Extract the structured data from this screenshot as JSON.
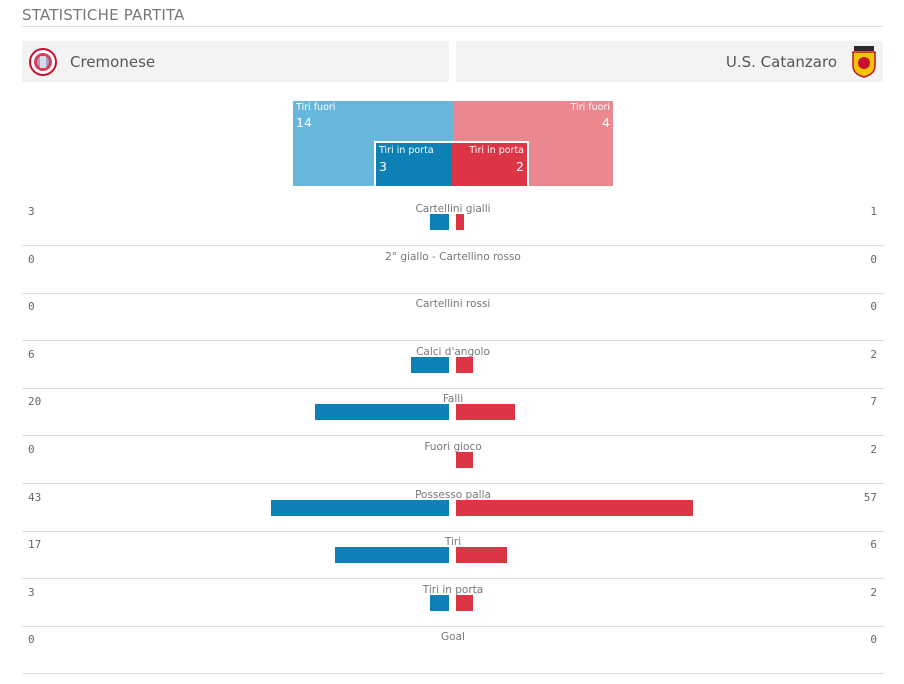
{
  "section_title": "STATISTICHE PARTITA",
  "teams": {
    "home": {
      "name": "Cremonese",
      "crest_icon": "cremonese-crest-icon",
      "color": "#0d80b5"
    },
    "away": {
      "name": "U.S. Catanzaro",
      "crest_icon": "catanzaro-crest-icon",
      "color": "#dc3545"
    }
  },
  "shots": {
    "off_label": "Tiri fuori",
    "on_label": "Tiri in porta",
    "home_off": "14",
    "away_off": "4",
    "home_on": "3",
    "away_on": "2",
    "colors": {
      "home_off": "#67b7dc",
      "away_off": "#ea878f",
      "home_on": "#0d80b5",
      "away_on": "#dc3545"
    }
  },
  "stats": [
    {
      "label": "Cartellini gialli",
      "home": "3",
      "away": "1",
      "home_value": 3,
      "away_value": 1
    },
    {
      "label": "2° giallo - Cartellino rosso",
      "home": "0",
      "away": "0",
      "home_value": 0,
      "away_value": 0
    },
    {
      "label": "Cartellini rossi",
      "home": "0",
      "away": "0",
      "home_value": 0,
      "away_value": 0
    },
    {
      "label": "Calci d'angolo",
      "home": "6",
      "away": "2",
      "home_value": 6,
      "away_value": 2
    },
    {
      "label": "Falli",
      "home": "20",
      "away": "7",
      "home_value": 20,
      "away_value": 7
    },
    {
      "label": "Fuori gioco",
      "home": "0",
      "away": "2",
      "home_value": 0,
      "away_value": 2
    },
    {
      "label": "Possesso palla",
      "home": "43",
      "away": "57",
      "home_value": 43,
      "away_value": 57
    },
    {
      "label": "Tiri",
      "home": "17",
      "away": "6",
      "home_value": 17,
      "away_value": 6
    },
    {
      "label": "Tiri in porta",
      "home": "3",
      "away": "2",
      "home_value": 3,
      "away_value": 2
    },
    {
      "label": "Goal",
      "home": "0",
      "away": "0",
      "home_value": 0,
      "away_value": 0
    }
  ]
}
